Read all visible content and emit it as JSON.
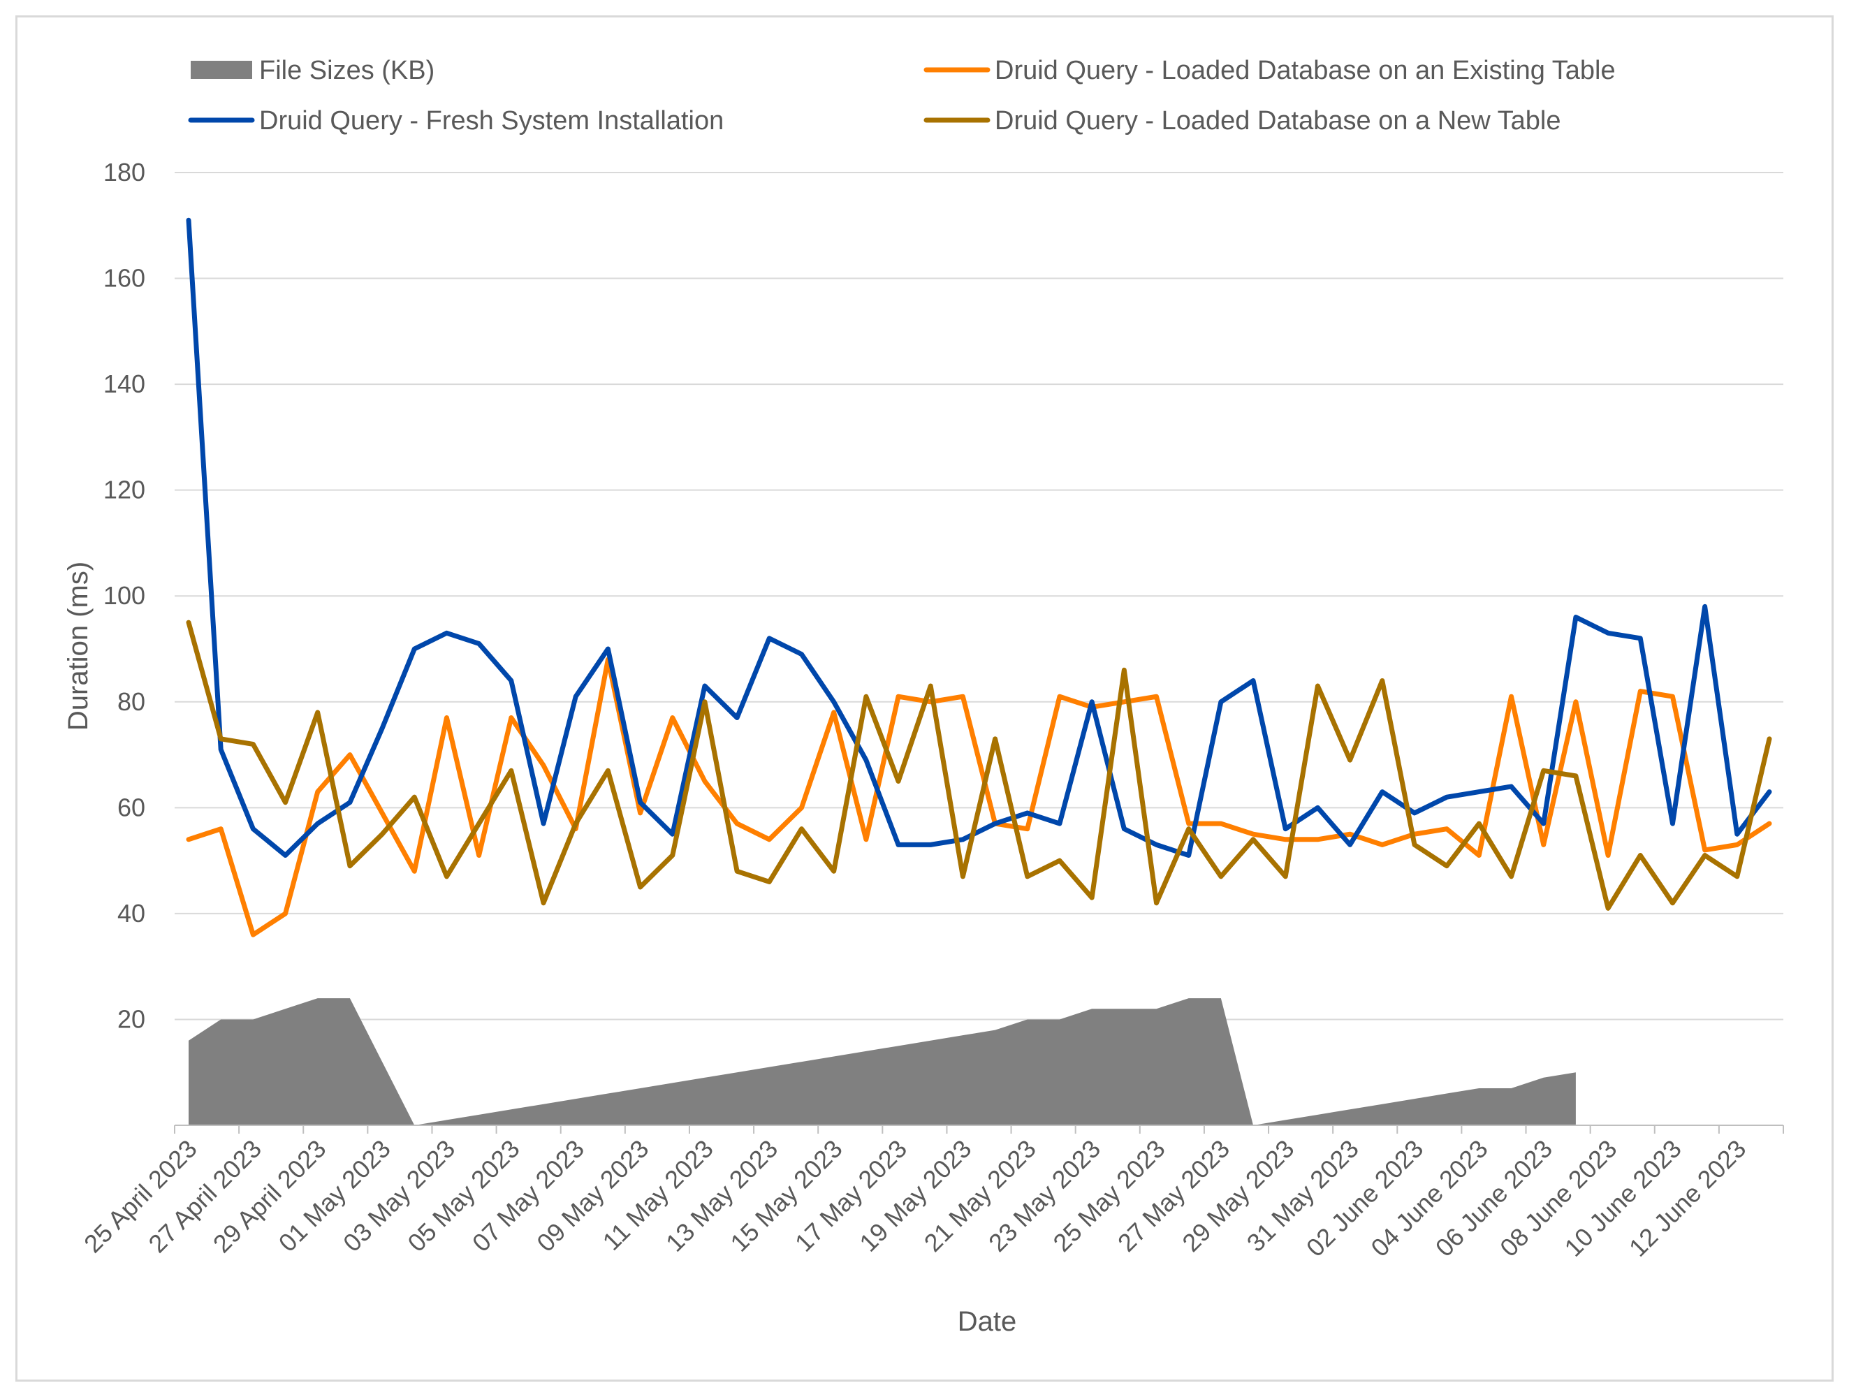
{
  "chart_data": {
    "type": "line",
    "title": "",
    "xlabel": "Date",
    "ylabel": "Duration (ms)",
    "ylim": [
      0,
      180
    ],
    "yticks": [
      20,
      40,
      60,
      80,
      100,
      120,
      140,
      160,
      180
    ],
    "grid": true,
    "legend_position": "top",
    "x_tick_labels": [
      "25 April 2023",
      "27 April 2023",
      "29 April 2023",
      "01 May 2023",
      "03 May 2023",
      "05 May 2023",
      "07 May 2023",
      "09 May 2023",
      "11 May 2023",
      "13 May 2023",
      "15 May 2023",
      "17 May 2023",
      "19 May 2023",
      "21 May 2023",
      "23 May 2023",
      "25 May 2023",
      "27 May 2023",
      "29 May 2023",
      "31 May 2023",
      "02 June 2023",
      "04 June 2023",
      "06 June 2023",
      "08 June 2023",
      "10 June 2023",
      "12 June 2023"
    ],
    "series": [
      {
        "name": "File Sizes (KB)",
        "kind": "area",
        "color": "#808080",
        "values": [
          16,
          20,
          20,
          22,
          24,
          24,
          12,
          0,
          1,
          2,
          3,
          4,
          5,
          6,
          7,
          8,
          9,
          10,
          11,
          12,
          13,
          14,
          15,
          16,
          17,
          18,
          20,
          20,
          22,
          22,
          22,
          24,
          24,
          0,
          1,
          2,
          3,
          4,
          5,
          6,
          7,
          7,
          9,
          10
        ]
      },
      {
        "name": "Druid Query - Loaded Database on an Existing Table",
        "kind": "line",
        "color": "#ff7f00",
        "values": [
          54,
          56,
          36,
          40,
          63,
          70,
          59,
          48,
          77,
          51,
          77,
          68,
          56,
          88,
          59,
          77,
          65,
          57,
          54,
          60,
          78,
          54,
          81,
          80,
          81,
          57,
          56,
          81,
          79,
          80,
          81,
          57,
          57,
          55,
          54,
          54,
          55,
          53,
          55,
          56,
          51,
          81,
          53,
          80,
          51,
          82,
          81,
          52,
          53,
          57
        ]
      },
      {
        "name": "Druid Query - Fresh System Installation",
        "kind": "line",
        "color": "#0047ab",
        "values": [
          171,
          71,
          56,
          51,
          57,
          61,
          75,
          90,
          93,
          91,
          84,
          57,
          81,
          90,
          61,
          55,
          83,
          77,
          92,
          89,
          80,
          69,
          53,
          53,
          54,
          57,
          59,
          57,
          80,
          56,
          53,
          51,
          80,
          84,
          56,
          60,
          53,
          63,
          59,
          62,
          63,
          64,
          57,
          96,
          93,
          92,
          57,
          98,
          55,
          63
        ]
      },
      {
        "name": "Druid Query - Loaded Database on a New Table",
        "kind": "line",
        "color": "#a87200",
        "values": [
          95,
          73,
          72,
          61,
          78,
          49,
          55,
          62,
          47,
          57,
          67,
          42,
          57,
          67,
          45,
          51,
          80,
          48,
          46,
          56,
          48,
          81,
          65,
          83,
          47,
          73,
          47,
          50,
          43,
          86,
          42,
          56,
          47,
          54,
          47,
          83,
          69,
          84,
          53,
          49,
          57,
          47,
          67,
          66,
          41,
          51,
          42,
          51,
          47,
          73
        ]
      }
    ],
    "legend": [
      "File Sizes (KB)",
      "Druid Query - Loaded Database on an Existing Table",
      "Druid Query - Fresh System Installation",
      "Druid Query - Loaded Database on a New Table"
    ]
  }
}
